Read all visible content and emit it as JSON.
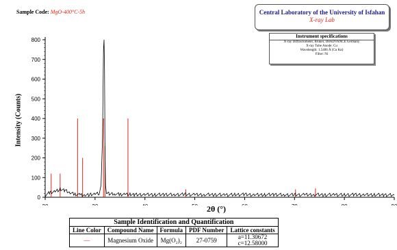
{
  "header": {
    "sample_code_label": "Sample Code:",
    "sample_code_value": "MgO-400°C-5h",
    "lab_name": "Central Laboratory of the University of Isfahan",
    "lab_sub": "X-ray Lab"
  },
  "instrument": {
    "title": "Instrument specifications",
    "lines": [
      "X-ray Diffractometer, Bruker, D8ADVANCE Germany",
      "X-ray Tube Anode: Cu",
      "Wavelength: 1.5406 Å (Cu Kα)",
      "Filter: Ni"
    ]
  },
  "chart_data": {
    "type": "line",
    "xlabel": "2θ (°)",
    "ylabel": "Intensity (Counts)",
    "xlim": [
      20,
      90
    ],
    "ylim": [
      0,
      800
    ],
    "xticks": [
      20,
      30,
      40,
      50,
      60,
      70,
      80,
      90
    ],
    "yticks": [
      0,
      100,
      200,
      300,
      400,
      500,
      600,
      700,
      800
    ],
    "series": [
      {
        "x": [
          20,
          21,
          22,
          23,
          24,
          25,
          26,
          27,
          28,
          29,
          30,
          30.8,
          31.2,
          31.5,
          31.7,
          31.8,
          31.9,
          32.0,
          32.1,
          32.3,
          32.6,
          33,
          34,
          35,
          36,
          37,
          38,
          40,
          42,
          44,
          46,
          48,
          50,
          52,
          54,
          56,
          58,
          60,
          62,
          64,
          66,
          68,
          70,
          72,
          74,
          76,
          78,
          80,
          82,
          84,
          86,
          88,
          90
        ],
        "y": [
          10,
          25,
          30,
          40,
          35,
          22,
          15,
          12,
          12,
          13,
          15,
          20,
          60,
          300,
          750,
          800,
          650,
          250,
          60,
          25,
          20,
          15,
          18,
          14,
          16,
          14,
          13,
          14,
          13,
          14,
          13,
          15,
          12,
          14,
          13,
          12,
          13,
          14,
          12,
          13,
          14,
          12,
          13,
          12,
          14,
          12,
          13,
          12,
          13,
          12,
          13,
          12,
          11
        ]
      }
    ],
    "reference_lines": {
      "color": "#e0261a",
      "x": [
        21.2,
        23.0,
        26.5,
        27.5,
        31.7,
        32.0,
        36.6,
        48.2,
        70.2,
        74.2
      ],
      "y": [
        120,
        120,
        400,
        200,
        400,
        260,
        400,
        40,
        40,
        45
      ]
    }
  },
  "table": {
    "caption": "Sample Identification and Quantification",
    "headers": [
      "Line Color",
      "Compound Name",
      "Formula",
      "PDF Number",
      "Lattice constants"
    ],
    "row": {
      "line_color": "—",
      "compound": "Magnesium Oxide",
      "formula": "Mg(O₂)₂",
      "pdf": "27-0759",
      "lattice_a": "a=11.30672",
      "lattice_c": "c=12.58000"
    },
    "line_color_hex": "#e0261a"
  }
}
